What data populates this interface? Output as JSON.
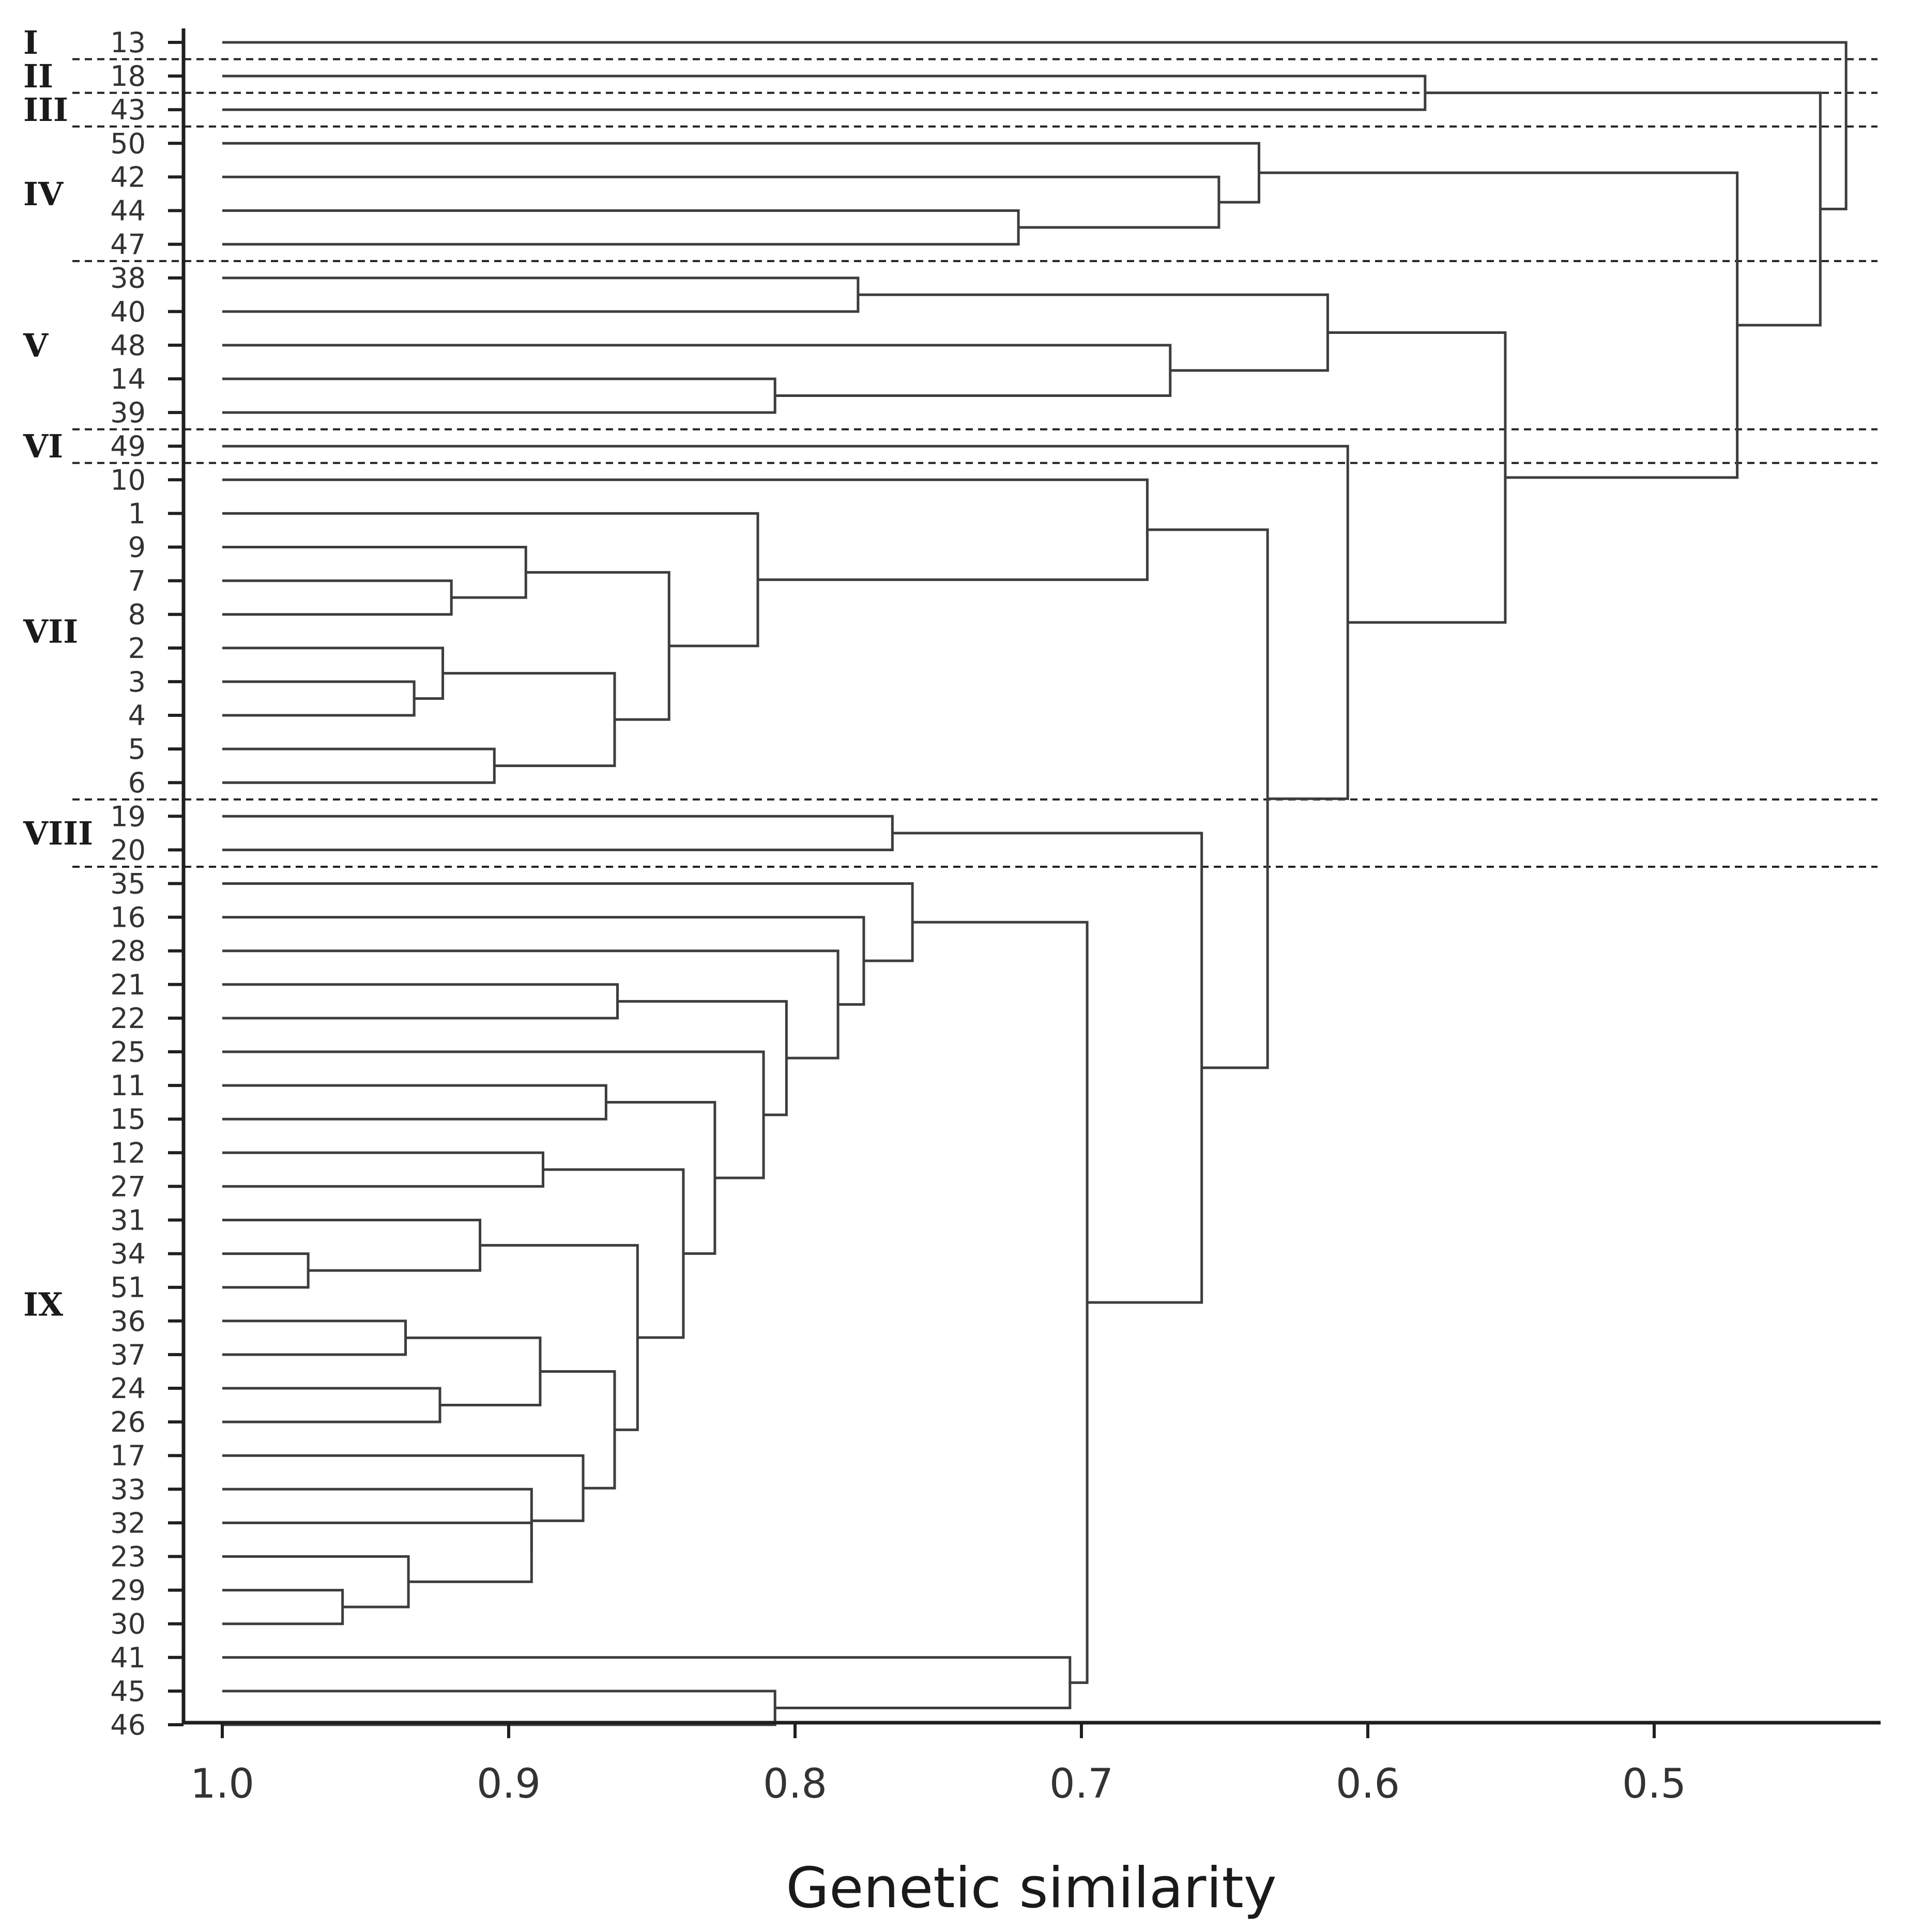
{
  "chart_data": {
    "type": "dendrogram",
    "title": "",
    "xlabel": "Genetic similarity",
    "ylabel": "",
    "xlim": [
      1.0,
      0.43
    ],
    "xticks": [
      "1.0",
      "0.9",
      "0.8",
      "0.7",
      "0.6",
      "0.5"
    ],
    "xtick_values": [
      1.0,
      0.9,
      0.8,
      0.7,
      0.6,
      0.5
    ],
    "leaves": [
      "13",
      "18",
      "43",
      "50",
      "42",
      "44",
      "47",
      "38",
      "40",
      "48",
      "14",
      "39",
      "49",
      "10",
      "1",
      "9",
      "7",
      "8",
      "2",
      "3",
      "4",
      "5",
      "6",
      "19",
      "20",
      "35",
      "16",
      "28",
      "21",
      "22",
      "25",
      "11",
      "15",
      "12",
      "27",
      "31",
      "34",
      "51",
      "36",
      "37",
      "24",
      "26",
      "17",
      "33",
      "32",
      "23",
      "29",
      "30",
      "41",
      "45",
      "46"
    ],
    "groups": [
      {
        "label": "I",
        "leaves": [
          "13"
        ]
      },
      {
        "label": "II",
        "leaves": [
          "18"
        ]
      },
      {
        "label": "III",
        "leaves": [
          "43"
        ]
      },
      {
        "label": "IV",
        "leaves": [
          "50",
          "42",
          "44",
          "47"
        ]
      },
      {
        "label": "V",
        "leaves": [
          "38",
          "40",
          "48",
          "14",
          "39"
        ]
      },
      {
        "label": "VI",
        "leaves": [
          "49"
        ]
      },
      {
        "label": "VII",
        "leaves": [
          "10",
          "1",
          "9",
          "7",
          "8",
          "2",
          "3",
          "4",
          "5",
          "6"
        ]
      },
      {
        "label": "VIII",
        "leaves": [
          "19",
          "20"
        ]
      },
      {
        "label": "IX",
        "leaves": [
          "35",
          "16",
          "28",
          "21",
          "22",
          "25",
          "11",
          "15",
          "12",
          "27",
          "31",
          "34",
          "51",
          "36",
          "37",
          "24",
          "26",
          "17",
          "33",
          "32",
          "23",
          "29",
          "30",
          "41",
          "45",
          "46"
        ]
      }
    ],
    "merges": [
      {
        "id": "c1",
        "children": [
          "18",
          "43"
        ],
        "height": 0.58
      },
      {
        "id": "c2",
        "children": [
          "44",
          "47"
        ],
        "height": 0.722
      },
      {
        "id": "c3",
        "children": [
          "42",
          "c2"
        ],
        "height": 0.652
      },
      {
        "id": "c4",
        "children": [
          "50",
          "c3"
        ],
        "height": 0.638
      },
      {
        "id": "c5",
        "children": [
          "38",
          "40"
        ],
        "height": 0.778
      },
      {
        "id": "c6",
        "children": [
          "14",
          "39"
        ],
        "height": 0.807
      },
      {
        "id": "c7",
        "children": [
          "48",
          "c6"
        ],
        "height": 0.669
      },
      {
        "id": "c8",
        "children": [
          "c5",
          "c7"
        ],
        "height": 0.614
      },
      {
        "id": "c9",
        "children": [
          "7",
          "8"
        ],
        "height": 0.92
      },
      {
        "id": "c10",
        "children": [
          "9",
          "c9"
        ],
        "height": 0.894
      },
      {
        "id": "c11",
        "children": [
          "3",
          "4"
        ],
        "height": 0.933
      },
      {
        "id": "c12",
        "children": [
          "2",
          "c11"
        ],
        "height": 0.923
      },
      {
        "id": "c13",
        "children": [
          "5",
          "6"
        ],
        "height": 0.905
      },
      {
        "id": "c14",
        "children": [
          "c12",
          "c13"
        ],
        "height": 0.863
      },
      {
        "id": "c15",
        "children": [
          "c10",
          "c14"
        ],
        "height": 0.844
      },
      {
        "id": "c16",
        "children": [
          "1",
          "c15"
        ],
        "height": 0.813
      },
      {
        "id": "c17",
        "children": [
          "10",
          "c16"
        ],
        "height": 0.677
      },
      {
        "id": "c18",
        "children": [
          "19",
          "20"
        ],
        "height": 0.766
      },
      {
        "id": "c19",
        "children": [
          "21",
          "22"
        ],
        "height": 0.862
      },
      {
        "id": "c20",
        "children": [
          "11",
          "15"
        ],
        "height": 0.866
      },
      {
        "id": "c21",
        "children": [
          "12",
          "27"
        ],
        "height": 0.888
      },
      {
        "id": "c22",
        "children": [
          "34",
          "51"
        ],
        "height": 0.97
      },
      {
        "id": "c23",
        "children": [
          "31",
          "c22"
        ],
        "height": 0.91
      },
      {
        "id": "c24",
        "children": [
          "36",
          "37"
        ],
        "height": 0.936
      },
      {
        "id": "c25",
        "children": [
          "24",
          "26"
        ],
        "height": 0.924
      },
      {
        "id": "c26",
        "children": [
          "c24",
          "c25"
        ],
        "height": 0.889
      },
      {
        "id": "c27",
        "children": [
          "29",
          "30"
        ],
        "height": 0.958
      },
      {
        "id": "c28",
        "children": [
          "23",
          "c27"
        ],
        "height": 0.935
      },
      {
        "id": "c29",
        "children": [
          "32",
          "c28"
        ],
        "height": 0.892
      },
      {
        "id": "c30",
        "children": [
          "33",
          "c29"
        ],
        "height": 0.892
      },
      {
        "id": "c31",
        "children": [
          "17",
          "c30"
        ],
        "height": 0.874
      },
      {
        "id": "c32",
        "children": [
          "c26",
          "c31"
        ],
        "height": 0.863
      },
      {
        "id": "c33",
        "children": [
          "c23",
          "c32"
        ],
        "height": 0.855
      },
      {
        "id": "c34",
        "children": [
          "c21",
          "c33"
        ],
        "height": 0.839
      },
      {
        "id": "c35",
        "children": [
          "c20",
          "c34"
        ],
        "height": 0.828
      },
      {
        "id": "c36",
        "children": [
          "25",
          "c35"
        ],
        "height": 0.811
      },
      {
        "id": "c37",
        "children": [
          "c19",
          "c36"
        ],
        "height": 0.803
      },
      {
        "id": "c38",
        "children": [
          "28",
          "c37"
        ],
        "height": 0.785
      },
      {
        "id": "c39",
        "children": [
          "16",
          "c38"
        ],
        "height": 0.776
      },
      {
        "id": "c40",
        "children": [
          "35",
          "c39"
        ],
        "height": 0.759
      },
      {
        "id": "c41",
        "children": [
          "45",
          "46"
        ],
        "height": 0.807
      },
      {
        "id": "c42",
        "children": [
          "41",
          "c41"
        ],
        "height": 0.704
      },
      {
        "id": "c43",
        "children": [
          "c40",
          "c42"
        ],
        "height": 0.698
      },
      {
        "id": "c44",
        "children": [
          "c18",
          "c43"
        ],
        "height": 0.658
      },
      {
        "id": "c45",
        "children": [
          "c17",
          "c44"
        ],
        "height": 0.635
      },
      {
        "id": "c46",
        "children": [
          "49",
          "c45"
        ],
        "height": 0.607
      },
      {
        "id": "c47",
        "children": [
          "c8",
          "c46"
        ],
        "height": 0.552
      },
      {
        "id": "c48",
        "children": [
          "c4",
          "c47"
        ],
        "height": 0.471
      },
      {
        "id": "c49",
        "children": [
          "c1",
          "c48"
        ],
        "height": 0.442
      },
      {
        "id": "c50",
        "children": [
          "13",
          "c49"
        ],
        "height": 0.433
      }
    ],
    "grid": false,
    "legend": "none"
  }
}
